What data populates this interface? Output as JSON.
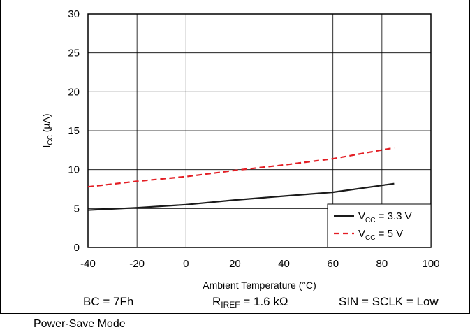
{
  "chart_data": {
    "type": "line",
    "title": "",
    "xlabel": "Ambient Temperature (°C)",
    "ylabel_main": "I",
    "ylabel_sub": "CC",
    "ylabel_unit": " (µA)",
    "xlim": [
      -40,
      100
    ],
    "ylim": [
      0,
      30
    ],
    "xticks": [
      -40,
      -20,
      0,
      20,
      40,
      60,
      80,
      100
    ],
    "yticks": [
      0,
      5,
      10,
      15,
      20,
      25,
      30
    ],
    "grid": true,
    "legend_position": "bottom-right",
    "series": [
      {
        "label_main": "V",
        "label_sub": "CC",
        "label_rest": " = 3.3 V",
        "style": "solid",
        "color": "#1a1a1a",
        "x": [
          -40,
          -20,
          0,
          20,
          40,
          60,
          85
        ],
        "y": [
          4.8,
          5.1,
          5.5,
          6.1,
          6.6,
          7.1,
          8.2
        ]
      },
      {
        "label_main": "V",
        "label_sub": "CC",
        "label_rest": " = 5 V",
        "style": "dashed",
        "color": "#e31e24",
        "x": [
          -40,
          -20,
          0,
          20,
          40,
          60,
          85
        ],
        "y": [
          7.8,
          8.5,
          9.1,
          9.9,
          10.6,
          11.4,
          12.8
        ]
      }
    ]
  },
  "conditions": {
    "bc": "BC = 7Fh",
    "riref_main": "R",
    "riref_sub": "IREF",
    "riref_rest": " = 1.6 kΩ",
    "sin": "SIN = SCLK = Low"
  },
  "mode": "Power-Save Mode"
}
